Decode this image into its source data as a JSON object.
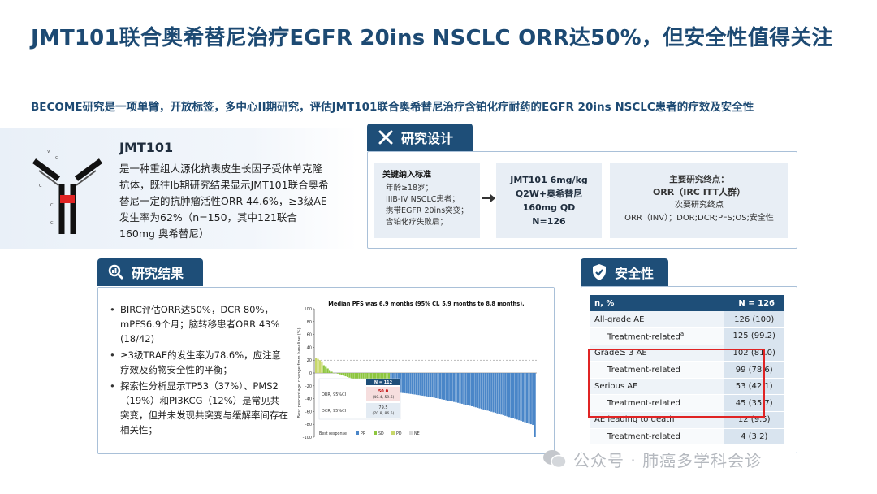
{
  "title": "JMT101联合奥希替尼治疗EGFR 20ins NSCLC ORR达50%，但安全性值得关注",
  "subtitle": "BECOME研究是一项单臂，开放标签，多中心II期研究，评估JMT101联合奥希替尼治疗含铂化疗耐药的EGFR 20ins NSCLC患者的疗效及安全性",
  "drug": {
    "name": "JMT101",
    "desc": "是一种重组人源化抗表皮生长因子受体单克隆抗体，既往Ib期研究结果显示JMT101联合奥希替尼一定的抗肿瘤活性ORR 44.6%，≥3级AE发生率为62%（n=150，其中121联合160mg 奥希替尼）"
  },
  "design": {
    "header": "研究设计",
    "criteria_title": "关键纳入标准",
    "criteria": [
      "年龄≥18岁；",
      "IIIB-IV NSCLC患者；",
      "携带EGFR 20ins突变；",
      "含铂化疗失败后；"
    ],
    "regimen": [
      "JMT101 6mg/kg",
      "Q2W+奥希替尼",
      "160mg QD",
      "N=126"
    ],
    "primary_title": "主要研究终点：",
    "primary": "ORR（IRC ITT人群）",
    "secondary_title": "次要研究终点",
    "secondary": "ORR（INV）；DOR;DCR;PFS;OS;安全性"
  },
  "results": {
    "header": "研究结果",
    "bullets": [
      "BIRC评估ORR达50%，DCR 80%，mPFS6.9个月；脑转移患者ORR 43%(18/42)",
      "≥3级TRAE的发生率为78.6%，应注意疗效及药物安全性的平衡；",
      "探索性分析显示TP53（37%）、PMS2（19%）和PI3KCG（12%）是常见共突变，但并未发现共突变与缓解率间存在相关性；"
    ]
  },
  "chart_data": {
    "type": "bar",
    "title": "Median PFS was 6.9 months (95% CI, 5.9 months to 8.8 months).",
    "ylabel": "Best percentage change from baseline (%)",
    "ylim": [
      -100,
      100
    ],
    "yticks": [
      "100",
      "80",
      "60",
      "40",
      "20",
      "0",
      "-20",
      "-40",
      "-60",
      "-80",
      "-100"
    ],
    "reference_lines": [
      20,
      -30
    ],
    "n_patients": 112,
    "legend_title": "Best response",
    "legend": [
      {
        "name": "PR",
        "color": "#4a86c8"
      },
      {
        "name": "SD",
        "color": "#8dc63f"
      },
      {
        "name": "PD",
        "color": "#c8d86a"
      },
      {
        "name": "NE",
        "color": "#d9d9d9"
      }
    ],
    "inset_table": {
      "header": "N = 112",
      "rows": [
        {
          "label": "ORR, 95%CI",
          "value": "50.0",
          "ci": "(40.4, 59.6)"
        },
        {
          "label": "DCR, 95%CI",
          "value": "79.5",
          "ci": "(70.8, 86.5)"
        }
      ]
    }
  },
  "safety": {
    "header": "安全性",
    "col1": "n, %",
    "col2": "N = 126",
    "rows": [
      {
        "label": "All-grade AE",
        "value": "126 (100)",
        "sub": false
      },
      {
        "label": "Treatment-related",
        "sup": "a",
        "value": "125 (99.2)",
        "sub": true
      },
      {
        "label": "Grade≥ 3 AE",
        "value": "102 (81.0)",
        "sub": false
      },
      {
        "label": "Treatment-related",
        "value": "99 (78.6)",
        "sub": true
      },
      {
        "label": "Serious AE",
        "value": "53 (42.1)",
        "sub": false
      },
      {
        "label": "Treatment-related",
        "value": "45 (35.7)",
        "sub": true
      },
      {
        "label": "AE leading to death",
        "value": "12 (9.5)",
        "sub": false
      },
      {
        "label": "Treatment-related",
        "value": "4 (3.2)",
        "sub": true
      }
    ]
  },
  "watermark": "公众号 · 肺癌多学科会诊",
  "colors": {
    "navy": "#1e4e78",
    "border": "#a9c0d8",
    "highlight": "#e02424"
  }
}
